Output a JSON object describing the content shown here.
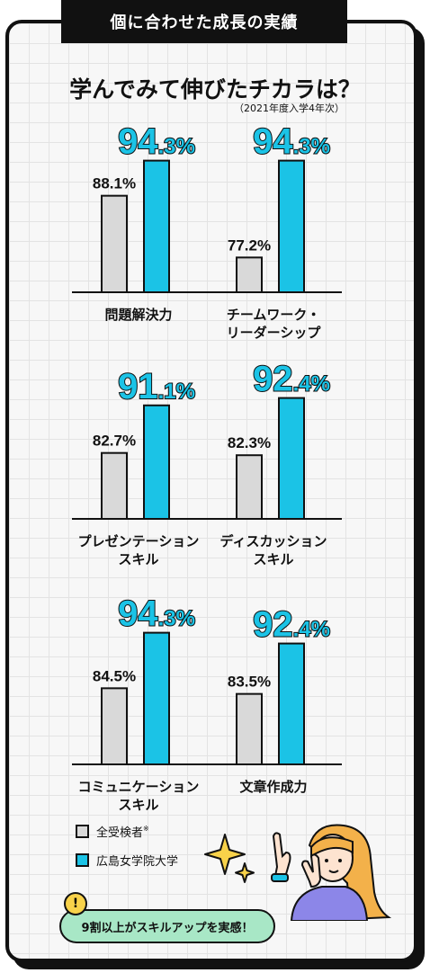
{
  "header": {
    "tab_label": "個に合わせた成長の実績",
    "title": "学んでみて伸びたチカラは？",
    "subtitle": "（2021年度入学4年次）"
  },
  "colors": {
    "all": "#d9d9d9",
    "hju": "#1bc3e6",
    "outline": "#111111",
    "bubble": "#a8e7c6"
  },
  "chart_data": {
    "type": "bar",
    "title": "学んでみて伸びたチカラは？",
    "subtitle": "（2021年度入学4年次）",
    "series": [
      {
        "name": "全受検者※",
        "values": [
          88.1,
          77.2,
          82.7,
          82.3,
          84.5,
          83.5
        ]
      },
      {
        "name": "広島女学院大学",
        "values": [
          94.3,
          94.3,
          91.1,
          92.4,
          94.3,
          92.4
        ]
      }
    ],
    "panels": [
      {
        "label": [
          "問題解決力"
        ],
        "all": "88.1%",
        "big": "94",
        "small": ".3%"
      },
      {
        "label": [
          "チームワーク・",
          "リーダーシップ"
        ],
        "all": "77.2%",
        "big": "94",
        "small": ".3%"
      },
      {
        "label": [
          "プレゼンテーション",
          "スキル"
        ],
        "all": "82.7%",
        "big": "91",
        "small": ".1%"
      },
      {
        "label": [
          "ディスカッション",
          "スキル"
        ],
        "all": "82.3%",
        "big": "92",
        "small": ".4%"
      },
      {
        "label": [
          "コミュニケーション",
          "スキル"
        ],
        "all": "84.5%",
        "big": "94",
        "small": ".3%"
      },
      {
        "label": [
          "文章作成力"
        ],
        "all": "83.5%",
        "big": "92",
        "small": ".4%"
      }
    ],
    "legend_placement": "bottom-left"
  },
  "legend": {
    "all": "全受検者",
    "all_mark": "※",
    "hju": "広島女学院大学"
  },
  "callout": {
    "text": "9割以上がスキルアップを実感！",
    "mark": "!"
  }
}
